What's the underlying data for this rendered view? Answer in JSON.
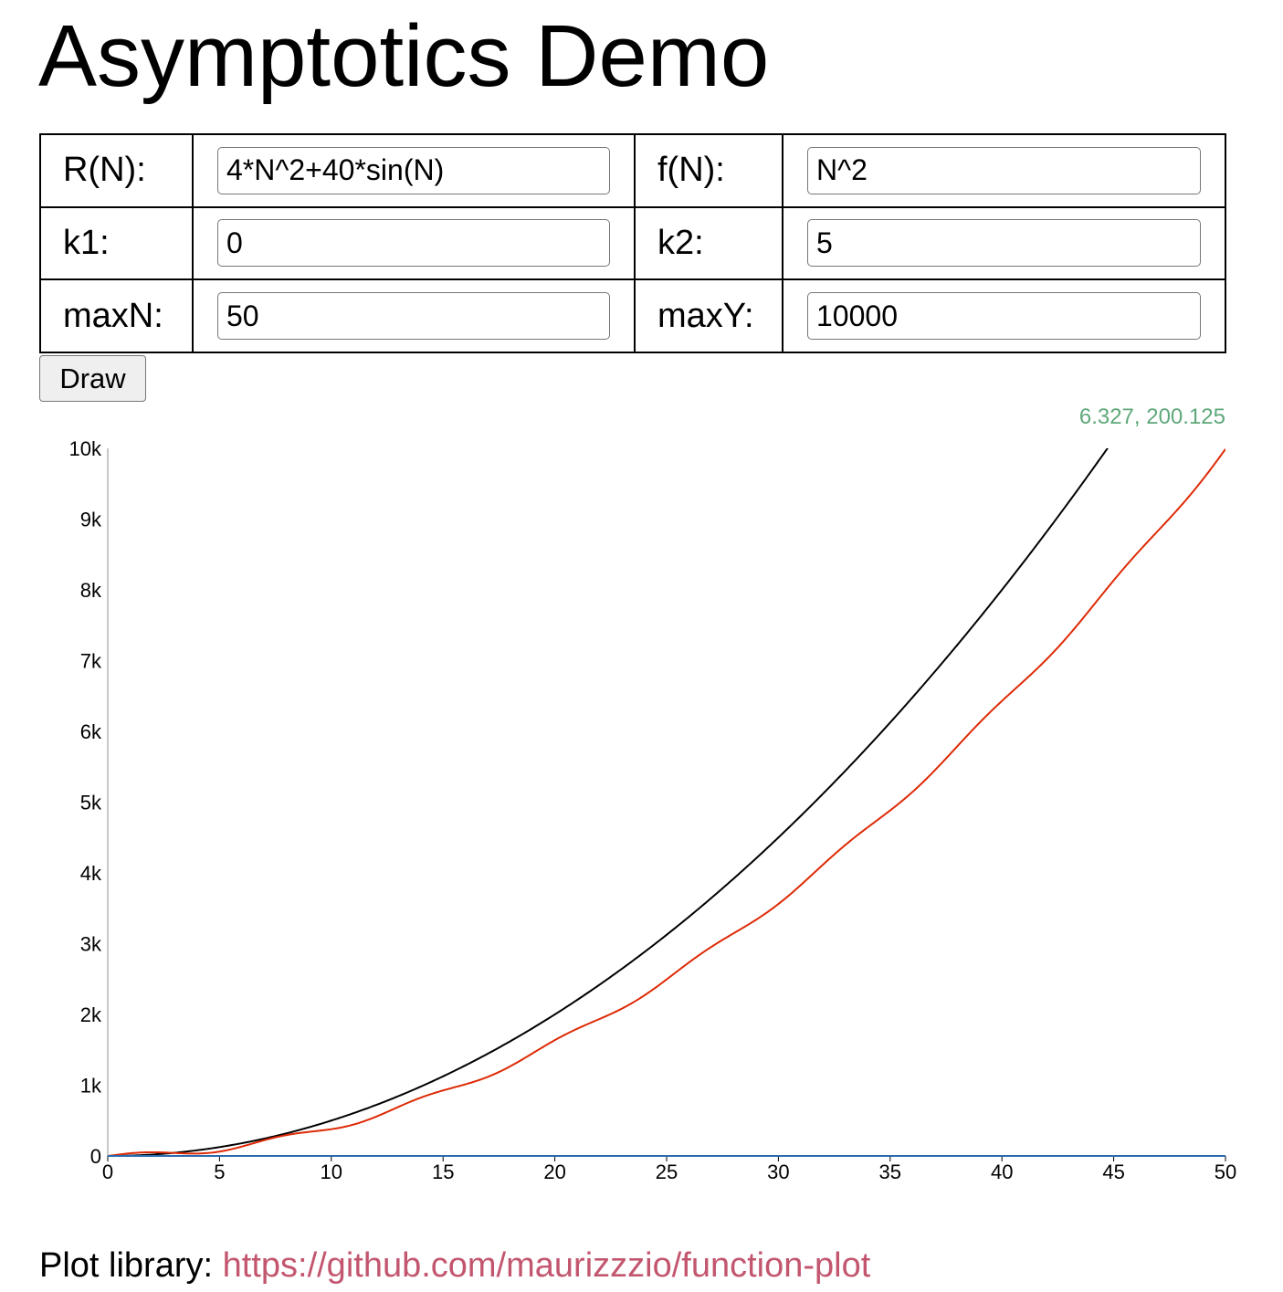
{
  "page": {
    "title": "Asymptotics Demo"
  },
  "form": {
    "fields": [
      {
        "label": "R(N):",
        "value": "4*N^2+40*sin(N)"
      },
      {
        "label": "f(N):",
        "value": "N^2"
      },
      {
        "label": "k1:",
        "value": "0"
      },
      {
        "label": "k2:",
        "value": "5"
      },
      {
        "label": "maxN:",
        "value": "50"
      },
      {
        "label": "maxY:",
        "value": "10000"
      }
    ],
    "draw_label": "Draw"
  },
  "plot": {
    "coord_readout": "6.327, 200.125"
  },
  "chart_data": {
    "type": "line",
    "x_range": [
      0,
      50
    ],
    "y_range": [
      0,
      10000
    ],
    "x_ticks": [
      "0",
      "5",
      "10",
      "15",
      "20",
      "25",
      "30",
      "35",
      "40",
      "45",
      "50"
    ],
    "y_ticks": [
      "0",
      "1k",
      "2k",
      "3k",
      "4k",
      "5k",
      "6k",
      "7k",
      "8k",
      "9k",
      "10k"
    ],
    "grid": false,
    "series": [
      {
        "expression": "k2*N^2",
        "color": "#000000"
      },
      {
        "expression": "4*N^2+40*sin(N)",
        "color": "#dd2a06"
      },
      {
        "expression": "k1*N^2",
        "color": "#2b6cb0"
      }
    ]
  },
  "footer": {
    "label": "Plot library:",
    "link_text": "https://github.com/maurizzzio/function-plot"
  }
}
